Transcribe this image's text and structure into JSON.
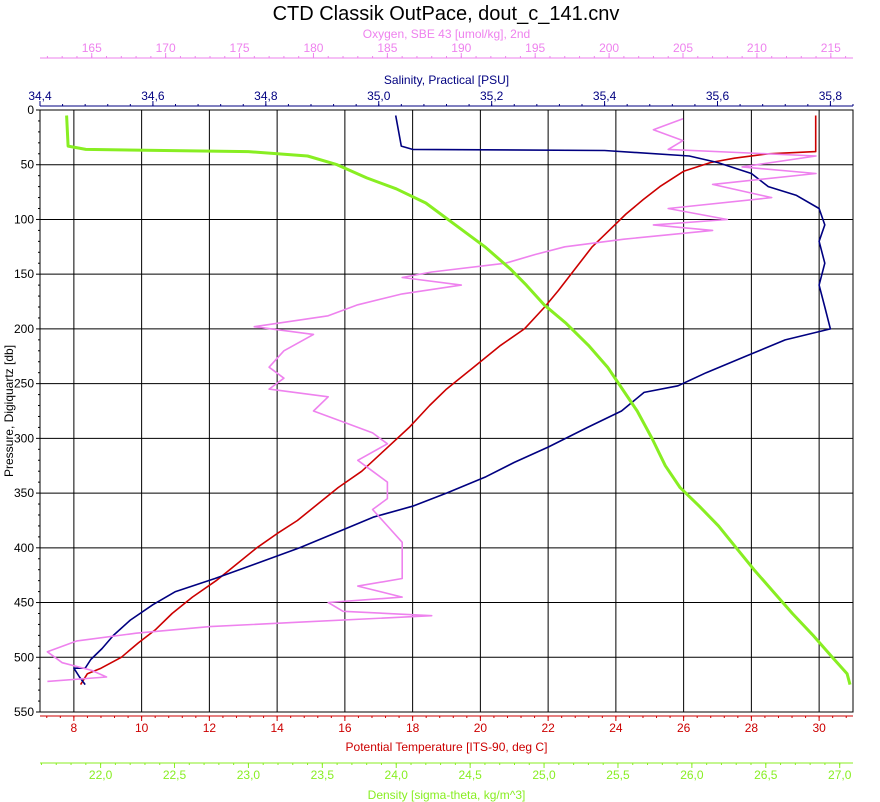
{
  "chart_data": {
    "type": "line",
    "title": "CTD Classik OutPace, dout_c_141.cnv",
    "colors": {
      "oxygen": "#ee82ee",
      "salinity": "#000080",
      "temperature": "#cc0000",
      "density": "#88ee22",
      "grid": "#000000"
    },
    "y_axis": {
      "label": "Pressure, Digiquartz [db]",
      "range": [
        0,
        550
      ],
      "inverted": true,
      "ticks": [
        0,
        50,
        100,
        150,
        200,
        250,
        300,
        350,
        400,
        450,
        500,
        550
      ]
    },
    "x_axes": [
      {
        "id": "oxygen",
        "label": "Oxygen, SBE 43 [umol/kg], 2nd",
        "position": "top",
        "range": [
          161.5,
          216.5
        ],
        "ticks": [
          165,
          170,
          175,
          180,
          185,
          190,
          195,
          200,
          205,
          210,
          215
        ],
        "tick_labels": [
          "165",
          "170",
          "175",
          "180",
          "185",
          "190",
          "195",
          "200",
          "205",
          "210",
          "215"
        ]
      },
      {
        "id": "salinity",
        "label": "Salinity, Practical [PSU]",
        "position": "top",
        "range": [
          34.4,
          35.84
        ],
        "ticks": [
          34.4,
          34.6,
          34.8,
          35.0,
          35.2,
          35.4,
          35.6,
          35.8
        ],
        "tick_labels": [
          "34,4",
          "34,6",
          "34,8",
          "35,0",
          "35,2",
          "35,4",
          "35,6",
          "35,8"
        ]
      },
      {
        "id": "temperature",
        "label": "Potential Temperature [ITS-90, deg C]",
        "position": "bottom",
        "range": [
          7.0,
          31.0
        ],
        "ticks": [
          8,
          10,
          12,
          14,
          16,
          18,
          20,
          22,
          24,
          26,
          28,
          30
        ],
        "tick_labels": [
          "8",
          "10",
          "12",
          "14",
          "16",
          "18",
          "20",
          "22",
          "24",
          "26",
          "28",
          "30"
        ]
      },
      {
        "id": "density",
        "label": "Density [sigma-theta, kg/m^3]",
        "position": "bottom",
        "range": [
          21.59,
          27.09
        ],
        "ticks": [
          22.0,
          22.5,
          23.0,
          23.5,
          24.0,
          24.5,
          25.0,
          25.5,
          26.0,
          26.5,
          27.0
        ],
        "tick_labels": [
          "22,0",
          "22,5",
          "23,0",
          "23,5",
          "24,0",
          "24,5",
          "25,0",
          "25,5",
          "26,0",
          "26,5",
          "27,0"
        ]
      }
    ],
    "grid": true,
    "series": [
      {
        "id": "temperature",
        "axis": "temperature",
        "points": [
          [
            29.9,
            5
          ],
          [
            29.9,
            38
          ],
          [
            28.5,
            40
          ],
          [
            27.5,
            44
          ],
          [
            26.8,
            48
          ],
          [
            26.0,
            56
          ],
          [
            25.3,
            70
          ],
          [
            24.8,
            82
          ],
          [
            24.3,
            95
          ],
          [
            23.8,
            110
          ],
          [
            23.3,
            125
          ],
          [
            22.8,
            145
          ],
          [
            22.3,
            165
          ],
          [
            21.9,
            180
          ],
          [
            21.3,
            200
          ],
          [
            20.6,
            215
          ],
          [
            19.8,
            235
          ],
          [
            19.0,
            255
          ],
          [
            18.5,
            270
          ],
          [
            17.9,
            290
          ],
          [
            17.2,
            310
          ],
          [
            16.5,
            330
          ],
          [
            15.8,
            345
          ],
          [
            15.2,
            360
          ],
          [
            14.6,
            375
          ],
          [
            14.0,
            387
          ],
          [
            13.4,
            400
          ],
          [
            12.8,
            415
          ],
          [
            12.2,
            430
          ],
          [
            11.5,
            445
          ],
          [
            10.9,
            460
          ],
          [
            10.4,
            475
          ],
          [
            9.9,
            487
          ],
          [
            9.4,
            500
          ],
          [
            8.8,
            510
          ],
          [
            8.4,
            515
          ],
          [
            8.2,
            525
          ]
        ]
      },
      {
        "id": "salinity",
        "axis": "salinity",
        "points": [
          [
            35.03,
            5
          ],
          [
            35.04,
            33
          ],
          [
            35.06,
            36
          ],
          [
            35.4,
            37
          ],
          [
            35.55,
            42
          ],
          [
            35.6,
            48
          ],
          [
            35.66,
            58
          ],
          [
            35.69,
            70
          ],
          [
            35.74,
            78
          ],
          [
            35.78,
            90
          ],
          [
            35.79,
            105
          ],
          [
            35.78,
            120
          ],
          [
            35.79,
            140
          ],
          [
            35.78,
            160
          ],
          [
            35.79,
            180
          ],
          [
            35.8,
            200
          ],
          [
            35.72,
            210
          ],
          [
            35.65,
            225
          ],
          [
            35.58,
            240
          ],
          [
            35.53,
            252
          ],
          [
            35.47,
            258
          ],
          [
            35.43,
            275
          ],
          [
            35.37,
            290
          ],
          [
            35.3,
            308
          ],
          [
            35.24,
            322
          ],
          [
            35.19,
            335
          ],
          [
            35.12,
            350
          ],
          [
            35.06,
            362
          ],
          [
            34.99,
            372
          ],
          [
            34.93,
            385
          ],
          [
            34.86,
            400
          ],
          [
            34.78,
            415
          ],
          [
            34.71,
            428
          ],
          [
            34.64,
            440
          ],
          [
            34.6,
            452
          ],
          [
            34.56,
            466
          ],
          [
            34.53,
            480
          ],
          [
            34.51,
            492
          ],
          [
            34.49,
            502
          ],
          [
            34.48,
            510
          ],
          [
            34.46,
            510
          ],
          [
            34.47,
            518
          ],
          [
            34.48,
            525
          ]
        ]
      },
      {
        "id": "oxygen",
        "axis": "oxygen",
        "points": [
          [
            205,
            8
          ],
          [
            203,
            18
          ],
          [
            205,
            28
          ],
          [
            204,
            36
          ],
          [
            214,
            42
          ],
          [
            209,
            52
          ],
          [
            214,
            58
          ],
          [
            207,
            68
          ],
          [
            211,
            80
          ],
          [
            204,
            90
          ],
          [
            208,
            100
          ],
          [
            203,
            105
          ],
          [
            207,
            110
          ],
          [
            201,
            118
          ],
          [
            197,
            125
          ],
          [
            195,
            132
          ],
          [
            193,
            140
          ],
          [
            188,
            148
          ],
          [
            186,
            153
          ],
          [
            190,
            160
          ],
          [
            186,
            168
          ],
          [
            183,
            178
          ],
          [
            181,
            188
          ],
          [
            176,
            198
          ],
          [
            180,
            205
          ],
          [
            178,
            220
          ],
          [
            177,
            235
          ],
          [
            178,
            245
          ],
          [
            177,
            255
          ],
          [
            181,
            262
          ],
          [
            180,
            275
          ],
          [
            182,
            285
          ],
          [
            184,
            295
          ],
          [
            185,
            305
          ],
          [
            183,
            320
          ],
          [
            184,
            330
          ],
          [
            185,
            340
          ],
          [
            185,
            355
          ],
          [
            184,
            365
          ],
          [
            185,
            380
          ],
          [
            186,
            395
          ],
          [
            186,
            410
          ],
          [
            186,
            428
          ],
          [
            183,
            435
          ],
          [
            186,
            445
          ],
          [
            181,
            450
          ],
          [
            182,
            458
          ],
          [
            188,
            462
          ],
          [
            179,
            468
          ],
          [
            173,
            472
          ],
          [
            168,
            478
          ],
          [
            164,
            485
          ],
          [
            162,
            495
          ],
          [
            163,
            505
          ],
          [
            165,
            512
          ],
          [
            166,
            518
          ],
          [
            162,
            522
          ]
        ]
      },
      {
        "id": "density",
        "axis": "density",
        "points": [
          [
            21.77,
            5
          ],
          [
            21.78,
            33
          ],
          [
            21.9,
            36
          ],
          [
            23.0,
            38
          ],
          [
            23.4,
            42
          ],
          [
            23.6,
            50
          ],
          [
            23.8,
            62
          ],
          [
            24.0,
            72
          ],
          [
            24.2,
            85
          ],
          [
            24.4,
            105
          ],
          [
            24.6,
            125
          ],
          [
            24.77,
            145
          ],
          [
            24.88,
            160
          ],
          [
            25.0,
            178
          ],
          [
            25.15,
            195
          ],
          [
            25.3,
            215
          ],
          [
            25.43,
            235
          ],
          [
            25.53,
            255
          ],
          [
            25.63,
            275
          ],
          [
            25.73,
            300
          ],
          [
            25.82,
            325
          ],
          [
            25.92,
            345
          ],
          [
            26.05,
            362
          ],
          [
            26.18,
            380
          ],
          [
            26.3,
            400
          ],
          [
            26.42,
            420
          ],
          [
            26.55,
            440
          ],
          [
            26.68,
            460
          ],
          [
            26.82,
            480
          ],
          [
            26.95,
            500
          ],
          [
            27.05,
            515
          ],
          [
            27.07,
            525
          ]
        ]
      }
    ]
  }
}
